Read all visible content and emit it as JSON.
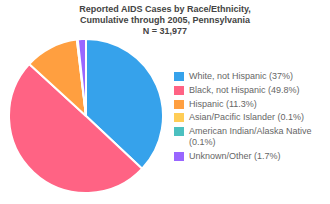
{
  "chart_data": {
    "type": "pie",
    "title": "Reported AIDS Cases by Race/Ethnicity,\nCumulative through 2005, Pennsylvania\nN = 31,977",
    "categories": [
      "White, not Hispanic (37%)",
      "Black, not Hispanic (49.8%)",
      "Hispanic (11.3%)",
      "Asian/Pacific Islander (0.1%)",
      "American Indian/Alaska Native\n(0.1%)",
      "Unknown/Other (1.7%)"
    ],
    "values": [
      37.0,
      49.8,
      11.3,
      0.1,
      0.1,
      1.7
    ],
    "legend": "right"
  }
}
